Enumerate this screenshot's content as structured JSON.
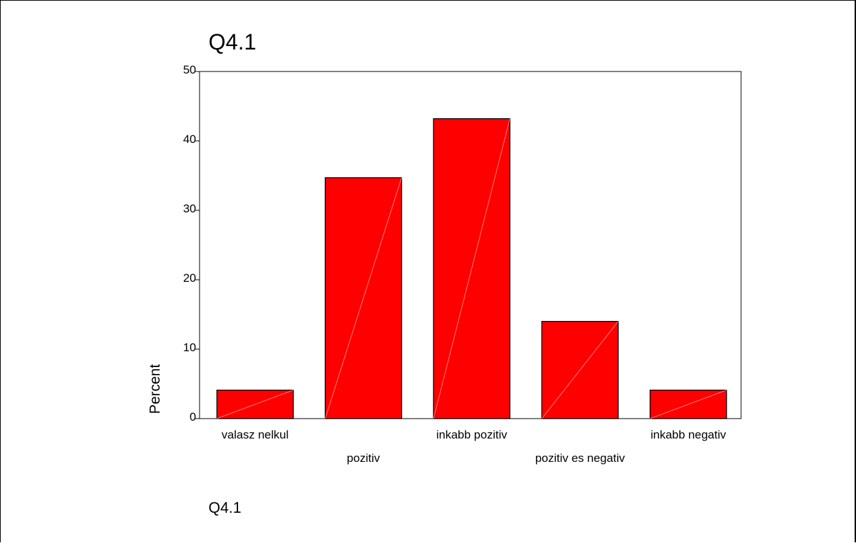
{
  "chart_data": {
    "type": "bar",
    "title": "Q4.1",
    "xlabel": "Q4.1",
    "ylabel": "Percent",
    "categories": [
      "valasz nelkul",
      "pozitiv",
      "inkabb pozitiv",
      "pozitiv es negativ",
      "inkabb negativ"
    ],
    "values": [
      4.1,
      34.7,
      43.2,
      14.0,
      4.1
    ],
    "ylim": [
      0,
      50
    ],
    "yticks": [
      0,
      10,
      20,
      30,
      40,
      50
    ],
    "bar_color": "#ff0000",
    "grid": false,
    "legend": "none"
  }
}
